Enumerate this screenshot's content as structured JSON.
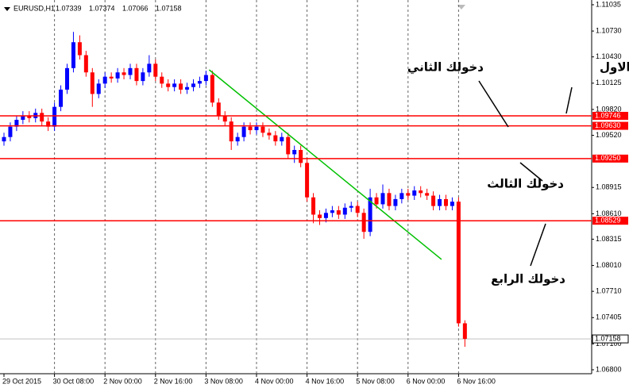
{
  "chart_data": {
    "type": "candlestick",
    "symbol": "EURUSD,H1",
    "categories": [
      "29 Oct 2015",
      null,
      null,
      null,
      null,
      null,
      null,
      null,
      "30 Oct 08:00",
      null,
      null,
      null,
      null,
      null,
      null,
      null,
      "2 Nov 00:00",
      null,
      null,
      null,
      null,
      null,
      null,
      null,
      "2 Nov 16:00",
      null,
      null,
      null,
      null,
      null,
      null,
      null,
      "3 Nov 08:00",
      null,
      null,
      null,
      null,
      null,
      null,
      null,
      "4 Nov 00:00",
      null,
      null,
      null,
      null,
      null,
      null,
      null,
      "4 Nov 16:00",
      null,
      null,
      null,
      null,
      null,
      null,
      null,
      "5 Nov 08:00",
      null,
      null,
      null,
      null,
      null,
      null,
      null,
      "6 Nov 00:00",
      null,
      null,
      null,
      null,
      null,
      null,
      null,
      "6 Nov 16:00",
      null
    ],
    "open": [
      1.0945,
      1.095,
      1.0962,
      1.097,
      1.0975,
      1.0972,
      1.0978,
      1.0968,
      1.0962,
      1.0985,
      1.1005,
      1.103,
      1.106,
      1.1045,
      1.1025,
      1.1,
      1.1012,
      1.102,
      1.1018,
      1.1025,
      1.1022,
      1.103,
      1.1015,
      1.1025,
      1.1035,
      1.102,
      1.1012,
      1.1008,
      1.1012,
      1.1005,
      1.1008,
      1.1012,
      1.1015,
      1.1022,
      1.099,
      1.0975,
      1.0968,
      1.0945,
      1.095,
      1.0962,
      1.0958,
      1.0962,
      1.0955,
      1.0952,
      1.0945,
      1.095,
      1.093,
      1.0935,
      1.092,
      1.088,
      1.086,
      1.0856,
      1.0862,
      1.0865,
      1.086,
      1.0868,
      1.087,
      1.0862,
      1.084,
      1.088,
      1.0872,
      1.0885,
      1.087,
      1.0878,
      1.0885,
      1.0882,
      1.0888,
      1.0885,
      1.0882,
      1.087,
      1.0878,
      1.087,
      1.0875,
      1.07339
    ],
    "high": [
      1.0955,
      1.0967,
      1.0975,
      1.098,
      1.098,
      1.0983,
      1.0983,
      1.0973,
      1.099,
      1.101,
      1.1035,
      1.1072,
      1.1068,
      1.105,
      1.103,
      1.1017,
      1.1025,
      1.1025,
      1.103,
      1.103,
      1.1035,
      1.1035,
      1.103,
      1.1045,
      1.104,
      1.1025,
      1.1017,
      1.1017,
      1.1017,
      1.1013,
      1.1017,
      1.102,
      1.1027,
      1.1027,
      1.0995,
      1.098,
      1.0973,
      1.0955,
      1.0967,
      1.0967,
      1.0967,
      1.0967,
      1.096,
      1.0957,
      1.0955,
      1.0955,
      1.094,
      1.094,
      1.0925,
      1.0885,
      1.0865,
      1.0867,
      1.087,
      1.087,
      1.0873,
      1.0875,
      1.0875,
      1.0867,
      1.089,
      1.0885,
      1.0895,
      1.089,
      1.0883,
      1.089,
      1.089,
      1.0893,
      1.0893,
      1.089,
      1.0887,
      1.0883,
      1.0883,
      1.088,
      1.088,
      1.07374
    ],
    "low": [
      1.094,
      1.0945,
      1.0957,
      1.0965,
      1.0967,
      1.0967,
      1.0963,
      1.0957,
      1.0957,
      1.098,
      1.1,
      1.1025,
      1.104,
      1.102,
      1.0985,
      1.0995,
      1.1007,
      1.1013,
      1.1013,
      1.1017,
      1.1017,
      1.101,
      1.101,
      1.102,
      1.1015,
      1.1007,
      1.1003,
      1.1003,
      1.1,
      1.1,
      1.1003,
      1.1007,
      1.101,
      1.0985,
      1.097,
      1.0963,
      1.0935,
      1.094,
      1.0945,
      1.0953,
      1.0953,
      1.095,
      1.0947,
      1.094,
      1.094,
      1.0925,
      1.092,
      1.0915,
      1.0875,
      1.085,
      1.0848,
      1.0851,
      1.0857,
      1.0855,
      1.0855,
      1.0863,
      1.0857,
      1.0832,
      1.0835,
      1.0867,
      1.0867,
      1.0865,
      1.0865,
      1.0873,
      1.0877,
      1.0877,
      1.088,
      1.0877,
      1.0865,
      1.0865,
      1.0865,
      1.0865,
      1.073,
      1.07066
    ],
    "close": [
      1.095,
      1.0962,
      1.097,
      1.0975,
      1.0972,
      1.0978,
      1.0968,
      1.0962,
      1.0985,
      1.1005,
      1.103,
      1.106,
      1.1045,
      1.1025,
      1.1,
      1.1012,
      1.102,
      1.1018,
      1.1025,
      1.1022,
      1.103,
      1.1015,
      1.1025,
      1.1035,
      1.102,
      1.1012,
      1.1008,
      1.1012,
      1.1005,
      1.1008,
      1.1012,
      1.1015,
      1.1022,
      1.099,
      1.0975,
      1.0968,
      1.0945,
      1.095,
      1.0962,
      1.0958,
      1.0962,
      1.0955,
      1.0952,
      1.0945,
      1.095,
      1.093,
      1.0935,
      1.092,
      1.088,
      1.086,
      1.0856,
      1.0862,
      1.0865,
      1.086,
      1.0868,
      1.087,
      1.0862,
      1.084,
      1.088,
      1.0872,
      1.0885,
      1.087,
      1.0878,
      1.0885,
      1.0882,
      1.0888,
      1.0885,
      1.0882,
      1.087,
      1.0878,
      1.087,
      1.0875,
      1.07339,
      1.07158
    ],
    "up_color": "#0000ff",
    "down_color": "#ff0000",
    "ylim": [
      1.06754,
      1.1109
    ],
    "yticks": [
      1.11035,
      {
        "value": 1.1073,
        "label": "1.10730"
      },
      {
        "value": 1.1043,
        "label": "1.10430"
      },
      1.10125,
      {
        "value": 1.0982,
        "label": "1.09820"
      },
      {
        "value": 1.0952,
        "label": "1.09520"
      },
      1.08915,
      {
        "value": 1.0861,
        "label": "1.08610"
      },
      1.08315,
      {
        "value": 1.0801,
        "label": "1.08010"
      },
      {
        "value": 1.0771,
        "label": "1.07710"
      },
      1.07405,
      {
        "value": 1.071,
        "label": "1.07100"
      },
      {
        "value": 1.068,
        "label": "1.06800"
      }
    ],
    "levels": [
      1.09746,
      {
        "value": 1.0963,
        "label": "1.09630"
      },
      {
        "value": 1.0925,
        "label": "1.09250"
      },
      1.08529
    ],
    "level_color": "#ff0000",
    "trendline": {
      "from": [
        32.5,
        1.1028
      ],
      "to": [
        69.3,
        1.0808
      ],
      "color": "#00c000"
    },
    "annotations": [
      "دخولك الاول",
      "دخولك الثاني",
      "دخولك الثالث",
      "دخولك الرابع"
    ]
  }
}
